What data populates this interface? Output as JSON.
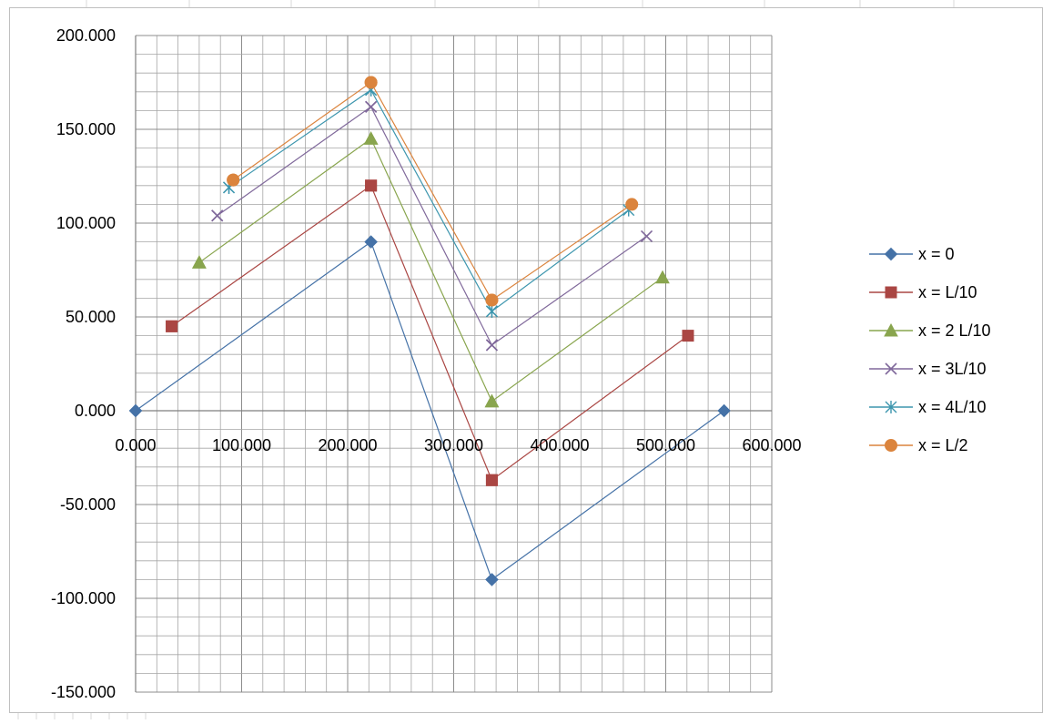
{
  "chart_data": {
    "type": "scatter",
    "x_range": [
      0,
      600
    ],
    "y_range": [
      -150,
      200
    ],
    "x_major_ticks": [
      0,
      100,
      200,
      300,
      400,
      500,
      600
    ],
    "y_major_ticks": [
      -150,
      -100,
      -50,
      0,
      50,
      100,
      150,
      200
    ],
    "x_tick_labels": [
      "0.000",
      "100.000",
      "200.000",
      "300.000",
      "400.000",
      "500.000",
      "600.000"
    ],
    "y_tick_labels": [
      "-150.000",
      "-100.000",
      "-50.000",
      "0.000",
      "50.000",
      "100.000",
      "150.000",
      "200.000"
    ],
    "x_minor_step": 20,
    "y_minor_step": 10,
    "grid": true,
    "legend_position": "right",
    "series": [
      {
        "name": "x = 0",
        "color": "#4572A7",
        "marker": "diamond",
        "points": [
          [
            0,
            0
          ],
          [
            222,
            90
          ],
          [
            336,
            -90
          ],
          [
            555,
            0
          ],
          [
            336,
            -90
          ],
          [
            222,
            90
          ],
          [
            0,
            0
          ]
        ]
      },
      {
        "name": "x = L/10",
        "color": "#AA4643",
        "marker": "square",
        "points": [
          [
            34,
            45
          ],
          [
            222,
            120
          ],
          [
            336,
            -37
          ],
          [
            521,
            40
          ],
          [
            336,
            -37
          ],
          [
            222,
            120
          ],
          [
            34,
            45
          ]
        ]
      },
      {
        "name": "x = 2 L/10",
        "color": "#89A54E",
        "marker": "triangle",
        "points": [
          [
            60,
            79
          ],
          [
            222,
            145
          ],
          [
            336,
            5
          ],
          [
            497,
            71
          ],
          [
            336,
            5
          ],
          [
            222,
            145
          ],
          [
            60,
            79
          ]
        ]
      },
      {
        "name": "x = 3L/10",
        "color": "#80699B",
        "marker": "x",
        "points": [
          [
            77,
            104
          ],
          [
            222,
            162
          ],
          [
            336,
            35
          ],
          [
            482,
            93
          ],
          [
            336,
            35
          ],
          [
            222,
            162
          ],
          [
            77,
            104
          ]
        ]
      },
      {
        "name": "x = 4L/10",
        "color": "#3D96AE",
        "marker": "star",
        "points": [
          [
            88,
            119
          ],
          [
            222,
            171
          ],
          [
            336,
            53
          ],
          [
            465,
            107
          ],
          [
            336,
            53
          ],
          [
            222,
            171
          ],
          [
            88,
            119
          ]
        ]
      },
      {
        "name": "x = L/2",
        "color": "#DB843D",
        "marker": "circle",
        "points": [
          [
            92,
            123
          ],
          [
            222,
            175
          ],
          [
            336,
            59
          ],
          [
            468,
            110
          ],
          [
            336,
            59
          ],
          [
            222,
            175
          ],
          [
            92,
            123
          ]
        ]
      }
    ]
  }
}
